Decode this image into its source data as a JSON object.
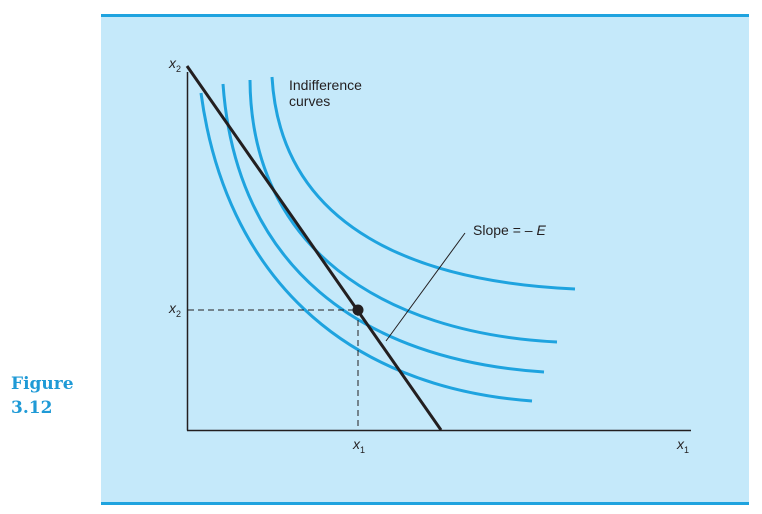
{
  "figure": {
    "label": "Figure",
    "number": "3.12"
  },
  "diagram": {
    "y_axis_label": {
      "var": "x",
      "sub": "2"
    },
    "x_axis_label": {
      "var": "x",
      "sub": "1"
    },
    "x1_tick_label": {
      "var": "x",
      "sub": "1"
    },
    "x2_tick_label": {
      "var": "x",
      "sub": "2"
    },
    "curves_label_line1": "Indifference",
    "curves_label_line2": "curves",
    "slope_label_prefix": "Slope = – ",
    "slope_label_var": "E",
    "colors": {
      "curve": "#1ea3df",
      "ink": "#231f20",
      "panel": "#c5e9fa",
      "rule": "#1fa3df",
      "caption": "#1f9ad6"
    }
  }
}
